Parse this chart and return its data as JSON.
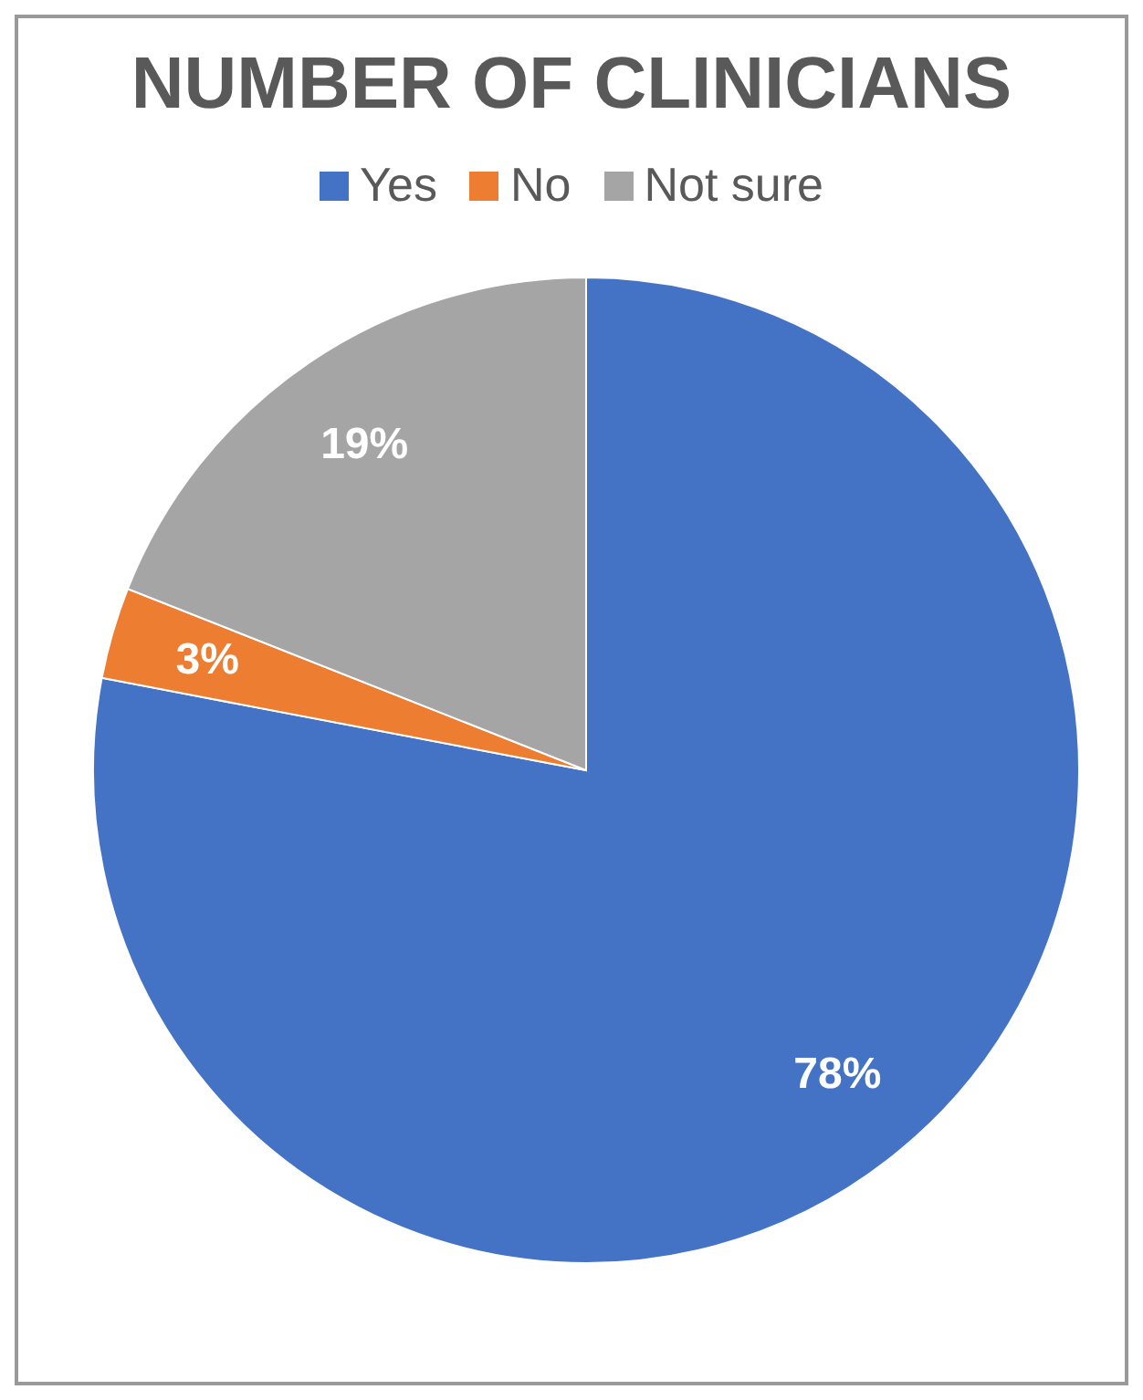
{
  "chart_data": {
    "type": "pie",
    "title": "NUMBER OF CLINICIANS",
    "categories": [
      "Yes",
      "No",
      "Not sure"
    ],
    "values": [
      78,
      3,
      19
    ],
    "colors": [
      "#4472c4",
      "#ed7d31",
      "#a5a5a5"
    ],
    "value_labels": [
      "78%",
      "3%",
      "19%"
    ],
    "legend": "top"
  }
}
